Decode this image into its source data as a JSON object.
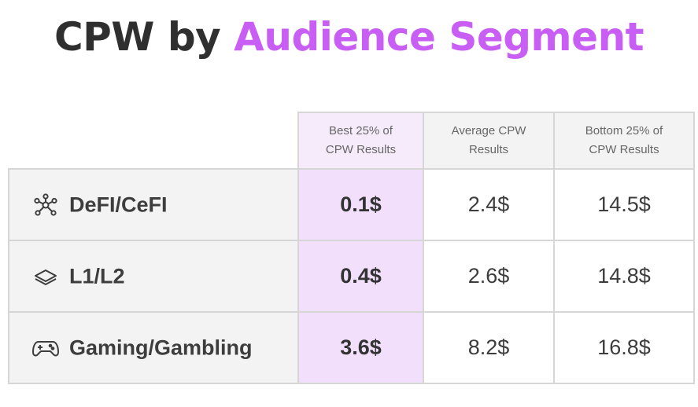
{
  "title": {
    "prefix": "CPW by",
    "highlight": "Audience Segment"
  },
  "colors": {
    "accent": "#c95ef5",
    "best_cell_bg": "#f2dffc",
    "header_bg": "#f3f3f3",
    "border": "#d6d6d6"
  },
  "chart_data": {
    "type": "table",
    "title": "CPW by Audience Segment",
    "columns": [
      "Best 25% of CPW Results",
      "Average CPW Results",
      "Bottom 25% of CPW Results"
    ],
    "rows": [
      {
        "segment": "DeFI/CeFI",
        "icon": "network-nodes-icon",
        "values": [
          "0.1$",
          "2.4$",
          "14.5$"
        ]
      },
      {
        "segment": "L1/L2",
        "icon": "layers-icon",
        "values": [
          "0.4$",
          "2.6$",
          "14.8$"
        ]
      },
      {
        "segment": "Gaming/Gambling",
        "icon": "gamepad-icon",
        "values": [
          "3.6$",
          "8.2$",
          "16.8$"
        ]
      }
    ]
  }
}
